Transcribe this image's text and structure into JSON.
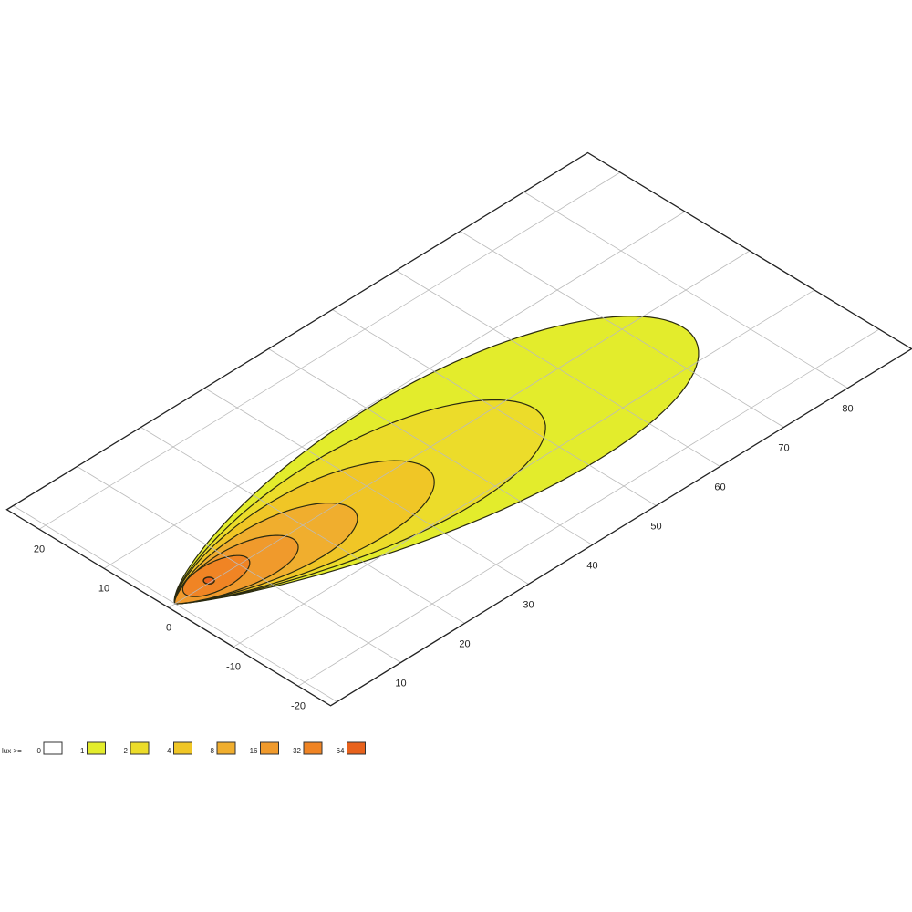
{
  "chart_data": {
    "type": "contour",
    "projection": "isometric plane view",
    "x_axis": {
      "ticks": [
        10,
        20,
        30,
        40,
        50,
        60,
        70,
        80
      ],
      "range": [
        -1,
        90
      ]
    },
    "y_axis": {
      "ticks": [
        -20,
        -10,
        0,
        10,
        20
      ],
      "range": [
        -25,
        25
      ]
    },
    "grid": true,
    "legend": {
      "label": "lux >=",
      "placement": "bottom-left",
      "levels": [
        {
          "value": "0",
          "color": "#ffffff"
        },
        {
          "value": "1",
          "color": "#e3ec2c"
        },
        {
          "value": "2",
          "color": "#ecdc2a"
        },
        {
          "value": "4",
          "color": "#f0c626"
        },
        {
          "value": "8",
          "color": "#f0ae2e"
        },
        {
          "value": "16",
          "color": "#f09a2c"
        },
        {
          "value": "32",
          "color": "#f08424"
        },
        {
          "value": "64",
          "color": "#e8621c"
        }
      ]
    },
    "contours": [
      {
        "level": 1,
        "reach_x": 75,
        "half_width_y": 13
      },
      {
        "level": 2,
        "reach_x": 53,
        "half_width_y": 9.5
      },
      {
        "level": 4,
        "reach_x": 37,
        "half_width_y": 7
      },
      {
        "level": 8,
        "reach_x": 26,
        "half_width_y": 5
      },
      {
        "level": 16,
        "reach_x": 17.5,
        "half_width_y": 3.6
      },
      {
        "level": 32,
        "reach_x": 9.5,
        "half_width_y": 2.2
      },
      {
        "level": 64,
        "reach_x": 1.2,
        "half_width_y": 0.6
      }
    ]
  }
}
